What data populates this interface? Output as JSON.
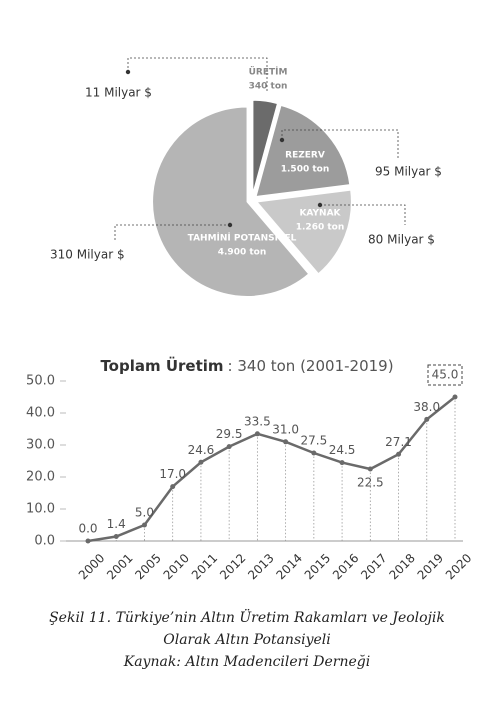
{
  "chart_data": [
    {
      "type": "pie",
      "categories": [
        "ÜRETİM",
        "REZERV",
        "KAYNAK",
        "TAHMİNİ POTANSİYEL"
      ],
      "values": [
        340,
        1500,
        1260,
        4900
      ],
      "value_labels": [
        "340 ton",
        "1.500 ton",
        "1.260 ton",
        "4.900 ton"
      ],
      "colors": [
        "#6b6b6b",
        "#9c9c9c",
        "#c9c9c9",
        "#b5b5b5"
      ],
      "annotations": [
        "11 Milyar $",
        "95 Milyar $",
        "80 Milyar $",
        "310 Milyar $"
      ]
    },
    {
      "type": "line",
      "title": "Toplam Üretim",
      "subtitle": ": 340 ton (2001-2019)",
      "categories": [
        "2000",
        "2001",
        "2005",
        "2010",
        "2011",
        "2012",
        "2013",
        "2014",
        "2015",
        "2016",
        "2017",
        "2018",
        "2019",
        "2020"
      ],
      "values": [
        0,
        1.4,
        5,
        17,
        24.6,
        29.5,
        33.5,
        31,
        27.5,
        24.5,
        22.5,
        27.1,
        38,
        45
      ],
      "value_labels": [
        "0.0",
        "1.4",
        "5.0",
        "17.0",
        "24.6",
        "29.5",
        "33.5",
        "31.0",
        "27.5",
        "24.5",
        "22.5",
        "27.1",
        "38.0",
        "45.0"
      ],
      "color": "#6a6a6a",
      "ylim": [
        0,
        50
      ],
      "yticks": [
        {
          "value": 0,
          "label": "0.0"
        },
        {
          "value": 10,
          "label": "10.0"
        },
        {
          "value": 20,
          "label": "20.0"
        },
        {
          "value": 30,
          "label": "30.0"
        },
        {
          "value": 40,
          "label": "40.0"
        },
        {
          "value": 50,
          "label": "50.0"
        }
      ]
    }
  ],
  "caption": [
    "Şekil 11. Türkiye’nin Altın Üretim Rakamları ve Jeolojik",
    "Olarak Altın Potansiyeli",
    "Kaynak: Altın Madencileri Derneği"
  ]
}
